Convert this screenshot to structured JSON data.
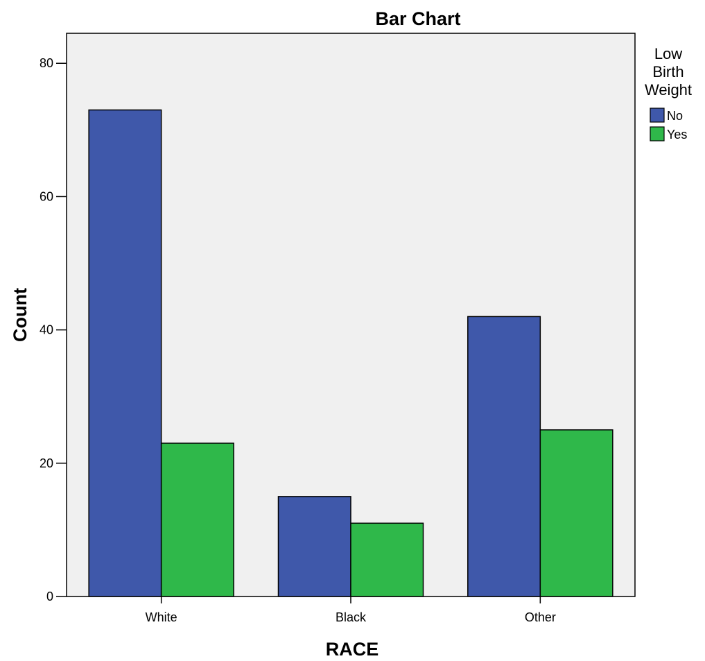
{
  "chart_data": {
    "type": "bar",
    "title": "Bar Chart",
    "xlabel": "RACE",
    "ylabel": "Count",
    "categories": [
      "White",
      "Black",
      "Other"
    ],
    "series": [
      {
        "name": "No",
        "color": "#3f58aa",
        "values": [
          73,
          15,
          42
        ]
      },
      {
        "name": "Yes",
        "color": "#2fb84a",
        "values": [
          23,
          11,
          25
        ]
      }
    ],
    "ylim": [
      0,
      84.5
    ],
    "yticks": [
      0,
      20,
      40,
      60,
      80
    ],
    "legend": {
      "title": "Low Birth Weight",
      "title_lines": [
        "Low",
        "Birth",
        "Weight"
      ],
      "placement": "right"
    },
    "grid": false,
    "background": "#f0f0f0"
  }
}
